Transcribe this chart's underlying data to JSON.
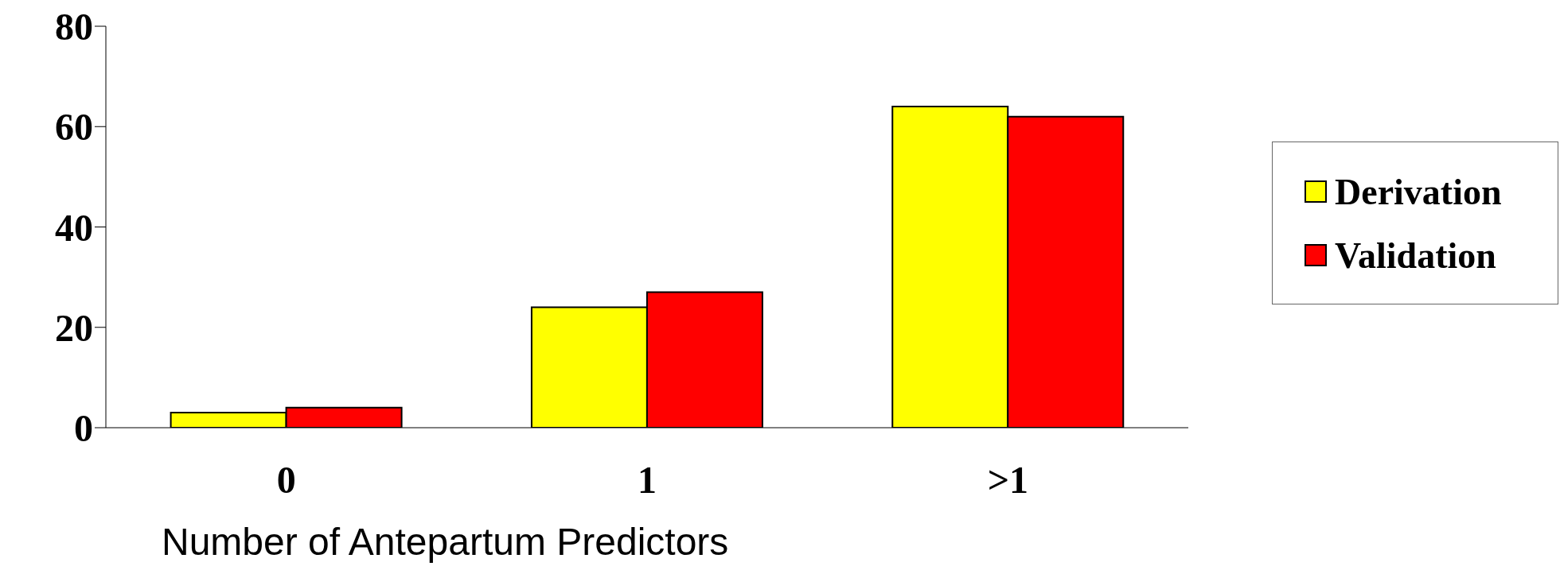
{
  "chart_data": {
    "type": "bar",
    "xlabel": "Number of  Antepartum Predictors",
    "categories": [
      "0",
      "1",
      ">1"
    ],
    "series": [
      {
        "name": "Derivation",
        "color": "#ffff00",
        "values": [
          3,
          24,
          64
        ]
      },
      {
        "name": "Validation",
        "color": "#ff0000",
        "values": [
          4,
          27,
          62
        ]
      }
    ],
    "ylim": [
      0,
      80
    ],
    "yticks": [
      0,
      20,
      40,
      60,
      80
    ],
    "grid": false,
    "legend": "right"
  }
}
